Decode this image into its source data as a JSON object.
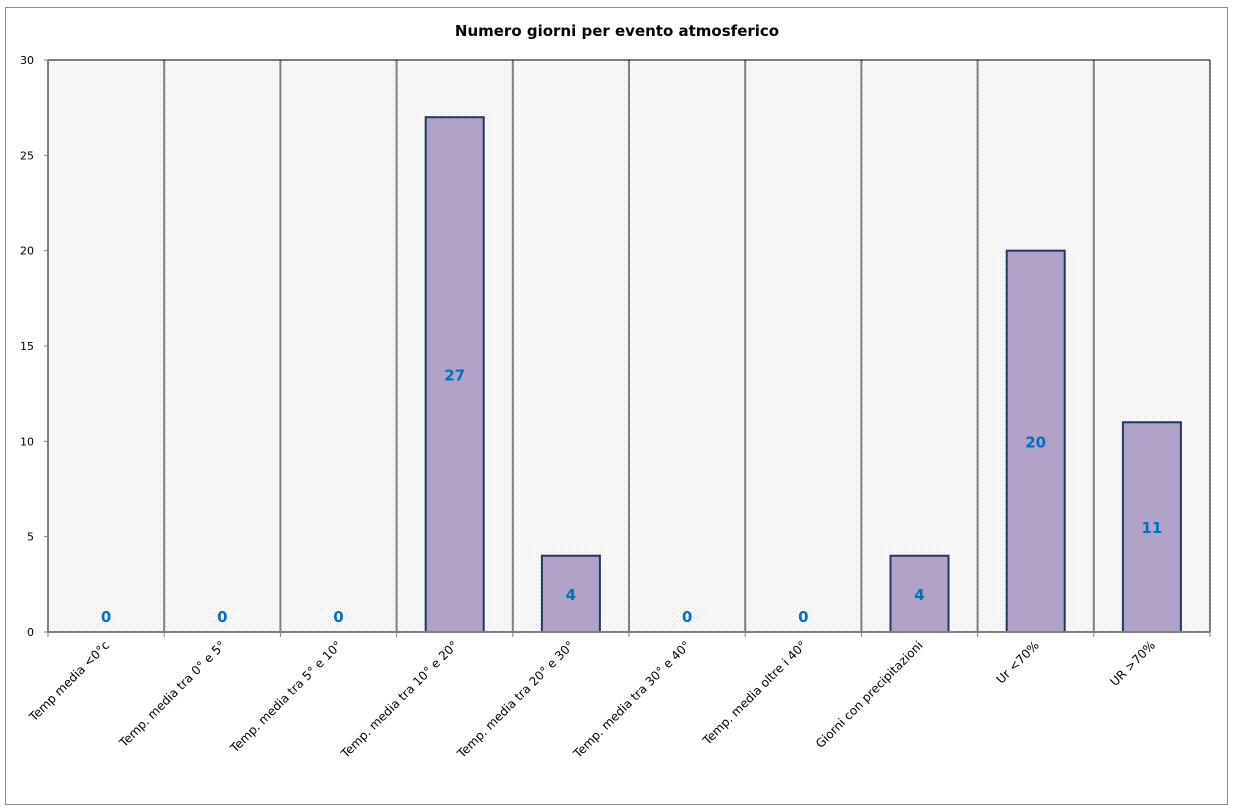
{
  "chart_data": {
    "type": "bar",
    "title": "Numero giorni  per evento atmosferico",
    "categories": [
      "Temp media <0°c",
      "Temp. media tra 0° e 5°",
      "Temp. media tra 5° e 10°",
      "Temp. media tra 10° e 20°",
      "Temp. media tra 20° e 30°",
      "Temp. media tra 30° e 40°",
      "Temp. media oltre i 40°",
      "Giorni con precipitazioni",
      "Ur  <70%",
      "UR >70%"
    ],
    "values": [
      0,
      0,
      0,
      27,
      4,
      0,
      0,
      4,
      20,
      11
    ],
    "ylim": [
      0,
      30
    ],
    "yticks": [
      0,
      5,
      10,
      15,
      20,
      25,
      30
    ],
    "xlabel": "",
    "ylabel": "",
    "grid": "vertical",
    "colors": {
      "bar": "#b1a2c7",
      "bar_border": "#1f3864",
      "data_label": "#0070c0"
    }
  }
}
